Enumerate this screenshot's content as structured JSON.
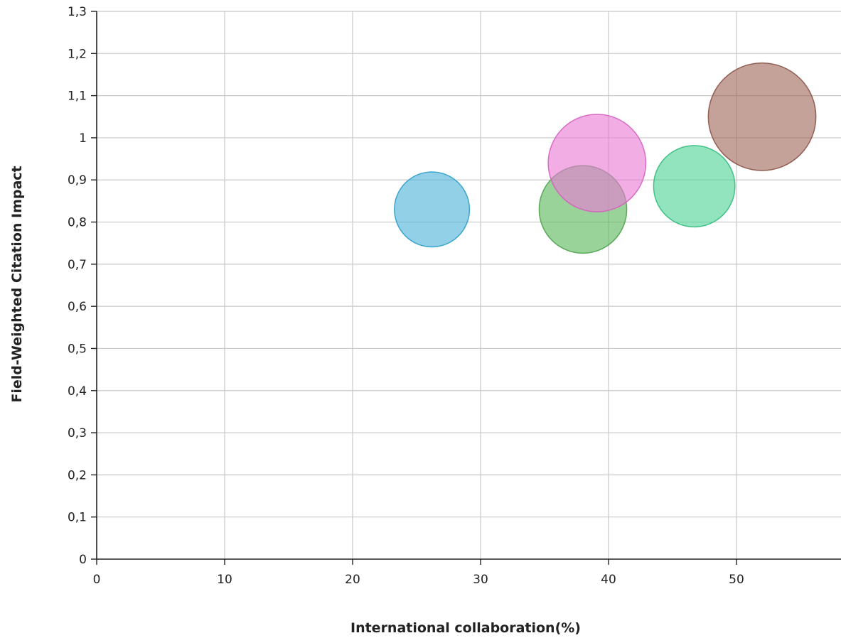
{
  "chart_data": {
    "type": "scatter",
    "title": "",
    "xlabel": "International collaboration(%)",
    "ylabel": "Field-Weighted Citation Impact",
    "xlim": [
      0,
      58
    ],
    "ylim": [
      0,
      1.3
    ],
    "x_ticks": [
      "0",
      "10",
      "20",
      "30",
      "40",
      "50"
    ],
    "y_ticks": [
      "0",
      "0,1",
      "0,2",
      "0,3",
      "0,4",
      "0,5",
      "0,6",
      "0,7",
      "0,8",
      "0,9",
      "1",
      "1,1",
      "1,2",
      "1,3"
    ],
    "grid": true,
    "legend": "none",
    "series": [
      {
        "x": 26.2,
        "y": 0.83,
        "size": 60,
        "color": "#4fb3d9",
        "stroke": "#2f9fc9"
      },
      {
        "x": 38.0,
        "y": 0.83,
        "size": 70,
        "color": "#5cb85c",
        "stroke": "#4ca24c"
      },
      {
        "x": 39.1,
        "y": 0.94,
        "size": 78,
        "color": "#e97ad3",
        "stroke": "#d65fc0"
      },
      {
        "x": 46.7,
        "y": 0.885,
        "size": 65,
        "color": "#4ed496",
        "stroke": "#33bd7d"
      },
      {
        "x": 52.0,
        "y": 1.05,
        "size": 86,
        "color": "#a0675a",
        "stroke": "#8a5246"
      }
    ]
  }
}
